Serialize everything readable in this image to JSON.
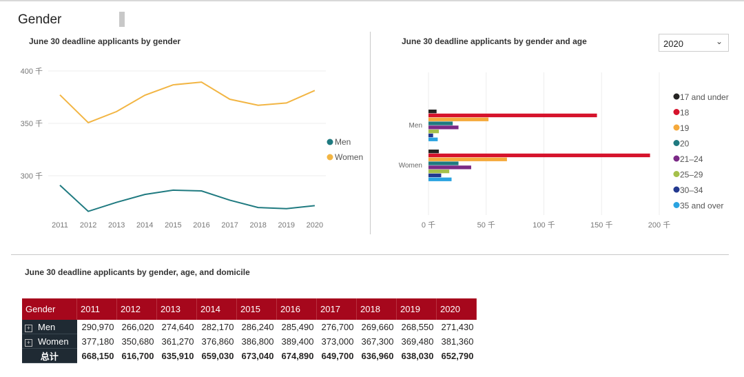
{
  "page_title": "Gender",
  "dropdown": {
    "value": "2020"
  },
  "colors": {
    "men": "#1f7a80",
    "women": "#f2b543",
    "header": "#a6071c"
  },
  "chart_data": [
    {
      "type": "line",
      "title": "June 30 deadline applicants by gender",
      "categories": [
        "2011",
        "2012",
        "2013",
        "2014",
        "2015",
        "2016",
        "2017",
        "2018",
        "2019",
        "2020"
      ],
      "ylim": [
        265000,
        410000
      ],
      "yticks": [
        300000,
        350000,
        400000
      ],
      "ytick_labels": [
        "300 千",
        "350 千",
        "400 千"
      ],
      "grid": true,
      "legend": "right",
      "series": [
        {
          "name": "Men",
          "color": "#1f7a80",
          "values": [
            290970,
            266020,
            274640,
            282170,
            286240,
            285490,
            276700,
            269660,
            268550,
            271430
          ]
        },
        {
          "name": "Women",
          "color": "#f2b543",
          "values": [
            377180,
            350680,
            361270,
            376860,
            386800,
            389400,
            373000,
            367300,
            369480,
            381360
          ]
        }
      ]
    },
    {
      "type": "bar",
      "orientation": "horizontal",
      "title": "June 30 deadline applicants by gender and age",
      "categories": [
        "Men",
        "Women"
      ],
      "xlim": [
        0,
        200
      ],
      "xticks": [
        0,
        50,
        100,
        150,
        200
      ],
      "xtick_labels": [
        "0 千",
        "50 千",
        "100 千",
        "150 千",
        "200 千"
      ],
      "grid": true,
      "legend": "right",
      "series": [
        {
          "name": "17 and under",
          "color": "#252423",
          "values": [
            7,
            9
          ]
        },
        {
          "name": "18",
          "color": "#d6132c",
          "values": [
            146,
            192
          ]
        },
        {
          "name": "19",
          "color": "#f5a93b",
          "values": [
            52,
            68
          ]
        },
        {
          "name": "20",
          "color": "#1f7a80",
          "values": [
            21,
            26
          ]
        },
        {
          "name": "21–24",
          "color": "#7b2a86",
          "values": [
            26,
            37
          ]
        },
        {
          "name": "25–29",
          "color": "#a5c04a",
          "values": [
            9,
            18
          ]
        },
        {
          "name": "30–34",
          "color": "#23398f",
          "values": [
            4,
            11
          ]
        },
        {
          "name": "35 and over",
          "color": "#2aa3e0",
          "values": [
            8,
            20
          ]
        }
      ]
    },
    {
      "type": "table",
      "title": "June 30 deadline applicants by gender, age, and domicile",
      "columns": [
        "Gender",
        "2011",
        "2012",
        "2013",
        "2014",
        "2015",
        "2016",
        "2017",
        "2018",
        "2019",
        "2020"
      ],
      "rows": [
        {
          "label": "Men",
          "values": [
            "290,970",
            "266,020",
            "274,640",
            "282,170",
            "286,240",
            "285,490",
            "276,700",
            "269,660",
            "268,550",
            "271,430"
          ]
        },
        {
          "label": "Women",
          "values": [
            "377,180",
            "350,680",
            "361,270",
            "376,860",
            "386,800",
            "389,400",
            "373,000",
            "367,300",
            "369,480",
            "381,360"
          ]
        },
        {
          "label": "总计",
          "values": [
            "668,150",
            "616,700",
            "635,910",
            "659,030",
            "673,040",
            "674,890",
            "649,700",
            "636,960",
            "638,030",
            "652,790"
          ]
        }
      ]
    }
  ]
}
